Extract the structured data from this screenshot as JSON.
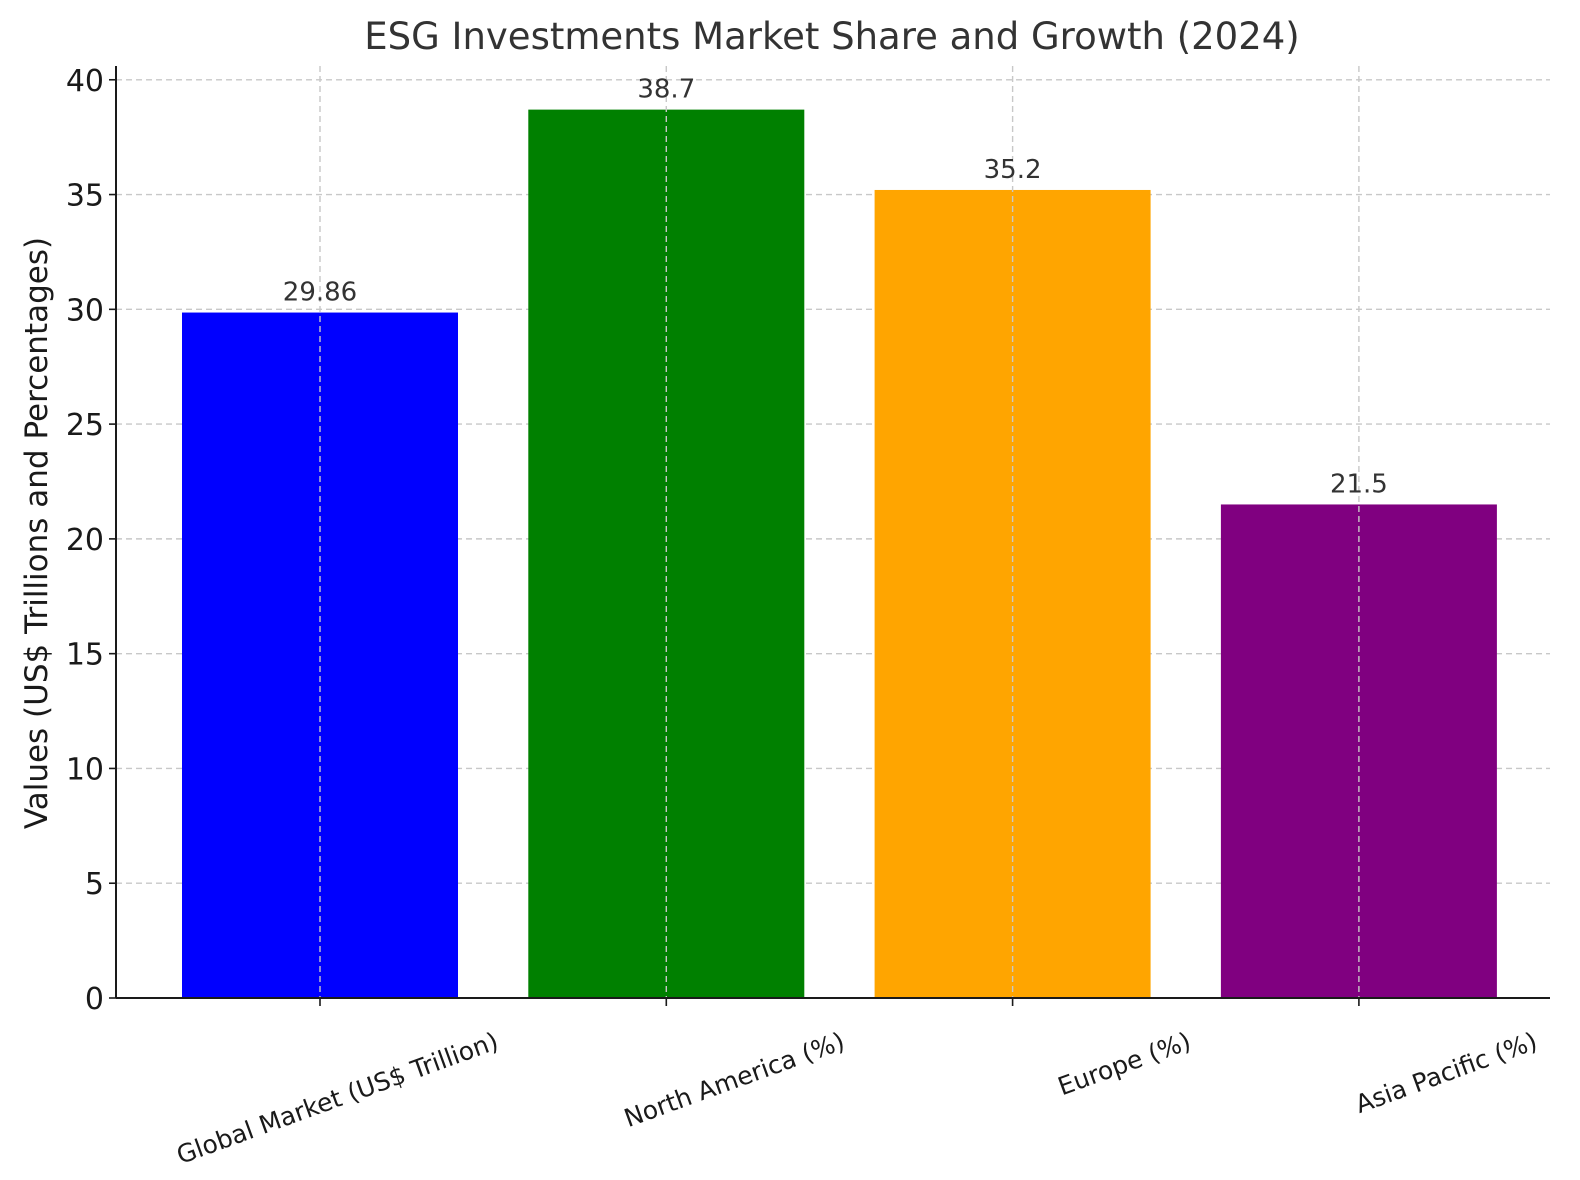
{
  "chart_data": {
    "type": "bar",
    "title": "ESG Investments Market Share and Growth (2024)",
    "xlabel": "",
    "ylabel": "Values (US$ Trillions and Percentages)",
    "categories": [
      "Global Market (US$ Trillion)",
      "North America (%)",
      "Europe (%)",
      "Asia Pacific (%)"
    ],
    "values": [
      29.86,
      38.7,
      35.2,
      21.5
    ],
    "data_labels": [
      "29.86",
      "38.7",
      "35.2",
      "21.5"
    ],
    "colors": [
      "#0000ff",
      "#008000",
      "#ffa500",
      "#800080"
    ],
    "ylim": [
      0,
      40.6
    ],
    "yticks": [
      0,
      5,
      10,
      15,
      20,
      25,
      30,
      35,
      40
    ],
    "ytick_labels": [
      "0",
      "5",
      "10",
      "15",
      "20",
      "25",
      "30",
      "35",
      "40"
    ],
    "grid": true,
    "legend": "none"
  }
}
